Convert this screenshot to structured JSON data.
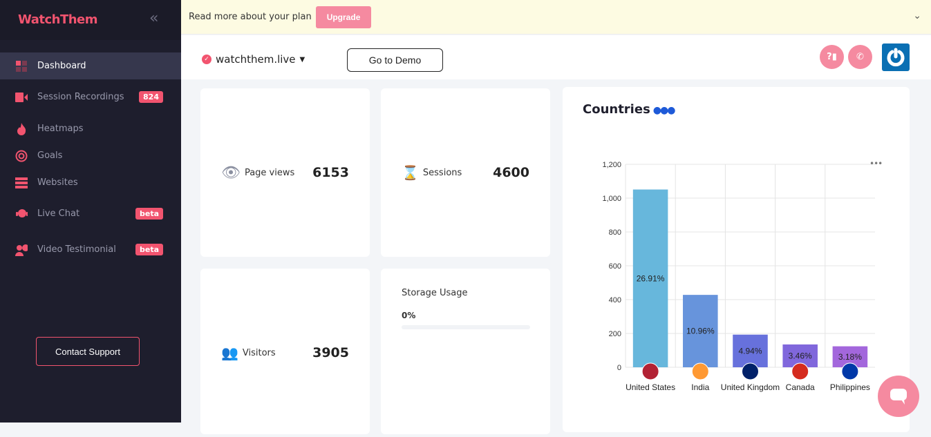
{
  "sidebar": {
    "logo": "WatchThem",
    "items": [
      {
        "label": "Dashboard",
        "icon": "dashboard-icon",
        "active": true
      },
      {
        "label": "Session Recordings",
        "icon": "video-camera-icon",
        "badge": "824"
      },
      {
        "label": "Heatmaps",
        "icon": "flame-icon"
      },
      {
        "label": "Goals",
        "icon": "target-icon"
      },
      {
        "label": "Websites",
        "icon": "server-icon"
      },
      {
        "label": "Live Chat",
        "icon": "headset-icon",
        "badge": "beta"
      },
      {
        "label": "Video Testimonial",
        "icon": "user-star-icon",
        "badge": "beta"
      }
    ],
    "contact": "Contact Support"
  },
  "banner": {
    "text": "Read more about your plan",
    "upgrade": "Upgrade"
  },
  "header": {
    "site": "watchthem.live",
    "demo": "Go to Demo",
    "help_icon": "?"
  },
  "stats": {
    "page_views_label": "Page views",
    "page_views": "6153",
    "sessions_label": "Sessions",
    "sessions": "4600",
    "visitors_label": "Visitors",
    "visitors": "3905",
    "storage_label": "Storage Usage",
    "storage": "0%",
    "storage_fraction": 0
  },
  "colors": {
    "accent": "#f2546f",
    "sidebar": "#1e1e2d"
  },
  "chart_data": {
    "type": "bar",
    "title": "Countries",
    "categories": [
      "United States",
      "India",
      "United Kingdom",
      "Canada",
      "Philippines"
    ],
    "values": [
      1051,
      428,
      193,
      135,
      124
    ],
    "labels": [
      "26.91%",
      "10.96%",
      "4.94%",
      "3.46%",
      "3.18%"
    ],
    "colors": [
      "#67b7dc",
      "#6794dc",
      "#6771dc",
      "#8067dc",
      "#a367dc"
    ],
    "ylim": [
      0,
      1200
    ],
    "yticks": [
      "0",
      "200",
      "400",
      "600",
      "800",
      "1,000",
      "1,200"
    ],
    "grid": true
  }
}
